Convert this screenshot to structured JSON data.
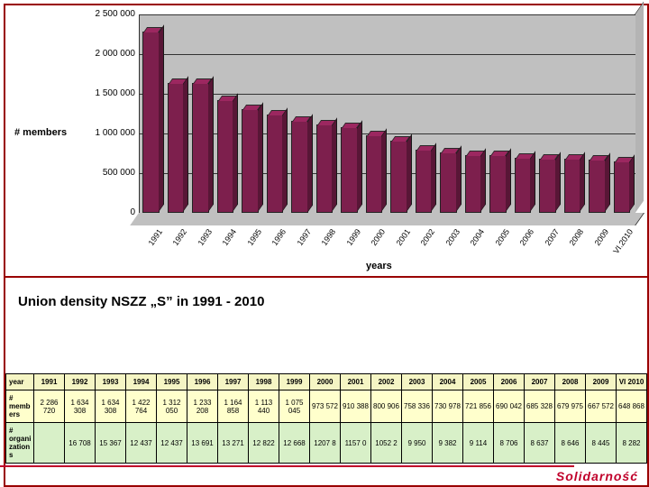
{
  "chart": {
    "type": "bar",
    "y_axis_title": "# members",
    "x_axis_title": "years",
    "title": "Union density NSZZ „S” in 1991 - 2010",
    "ylim": [
      0,
      2500000
    ],
    "ytick_step": 500000,
    "yticks": [
      "0",
      "500 000",
      "1 000 000",
      "1 500 000",
      "2 000 000",
      "2 500 000"
    ],
    "bar_color": "#7d1f4d",
    "grid_color": "#333333",
    "plot_bg": "#c0c0c0",
    "categories": [
      "1991",
      "1992",
      "1993",
      "1994",
      "1995",
      "1996",
      "1997",
      "1998",
      "1999",
      "2000",
      "2001",
      "2002",
      "2003",
      "2004",
      "2005",
      "2006",
      "2007",
      "2008",
      "2009",
      "VI.2010"
    ],
    "values": [
      2286720,
      1634308,
      1634308,
      1422764,
      1312050,
      1233208,
      1164858,
      1113440,
      1075045,
      973572,
      910388,
      800906,
      758336,
      730978,
      721856,
      690042,
      685328,
      679975,
      667572,
      648868
    ]
  },
  "table": {
    "head_label": "year",
    "row_members_label": "# members",
    "row_orgs_label": "# organizations",
    "years": [
      "1991",
      "1992",
      "1993",
      "1994",
      "1995",
      "1996",
      "1997",
      "1998",
      "1999",
      "2000",
      "2001",
      "2002",
      "2003",
      "2004",
      "2005",
      "2006",
      "2007",
      "2008",
      "2009",
      "VI 2010"
    ],
    "members": [
      "2 286 720",
      "1 634 308",
      "1 634 308",
      "1 422 764",
      "1 312 050",
      "1 233 208",
      "1 164 858",
      "1 113 440",
      "1 075 045",
      "973 572",
      "910 388",
      "800 906",
      "758 336",
      "730 978",
      "721 856",
      "690 042",
      "685 328",
      "679 975",
      "667 572",
      "648 868"
    ],
    "orgs": [
      "",
      "16 708",
      "15 367",
      "12 437",
      "12 437",
      "13 691",
      "13 271",
      "12 822",
      "12 668",
      "1207 8",
      "1157 0",
      "1052 2",
      "9 950",
      "9 382",
      "9 114",
      "8 706",
      "8 637",
      "8 646",
      "8 445",
      "8 282"
    ]
  },
  "footer": "Solidarność"
}
